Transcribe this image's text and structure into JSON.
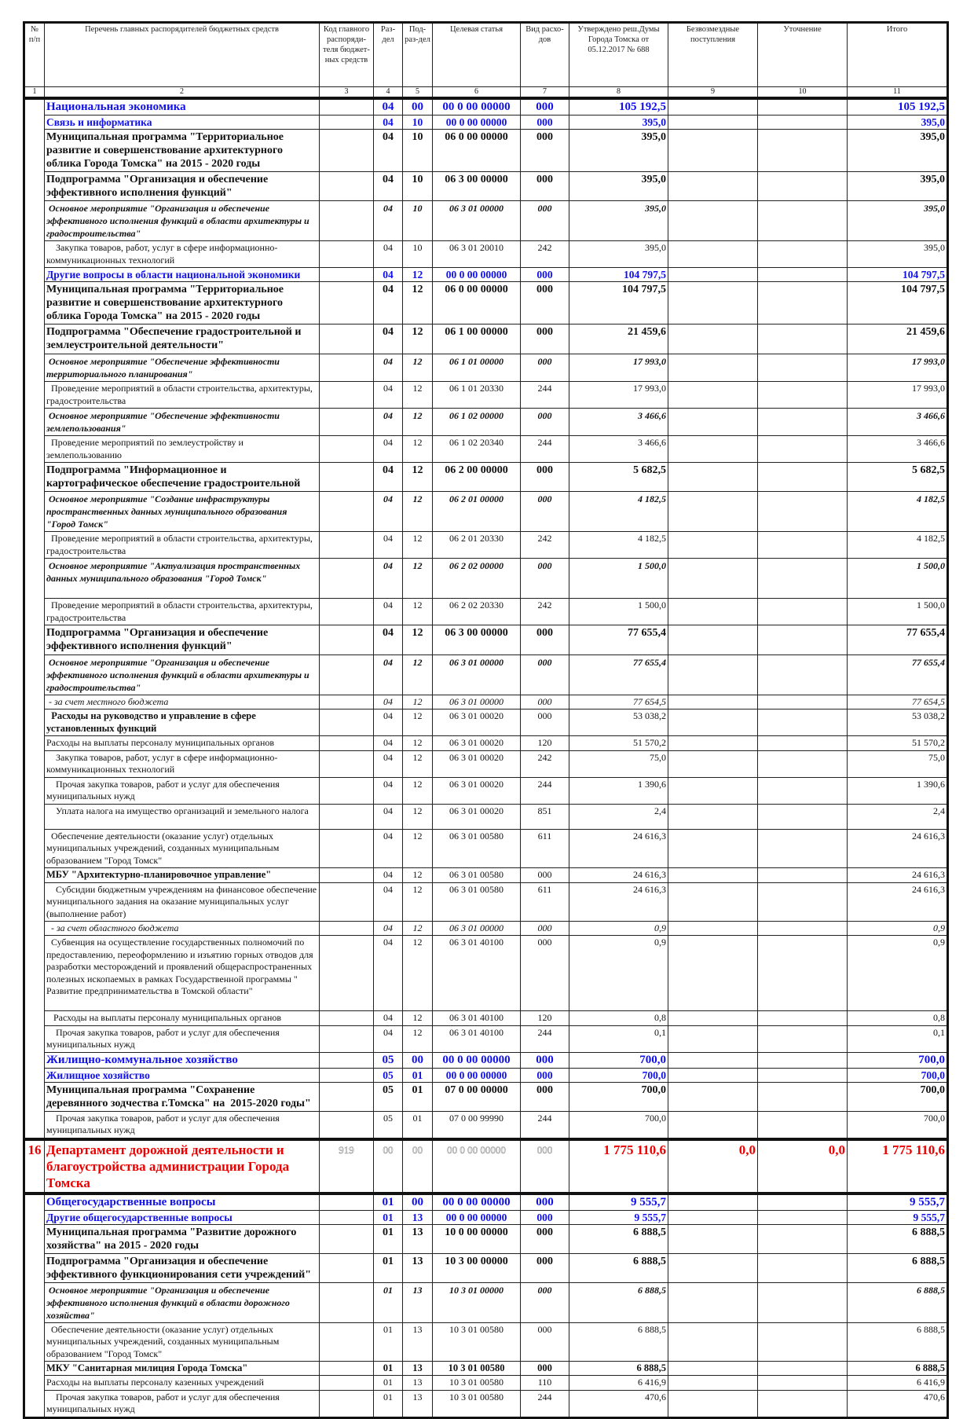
{
  "header": {
    "columns": [
      "№ п/п",
      "Перечень главных распорядителей бюджетных средств",
      "Код главного распоряди-теля бюджет-ных средств",
      "Раз-дел",
      "Под-раз-дел",
      "Целевая статья",
      "Вид расхо-дов",
      "Утверждено реш.Думы Города Томска от 05.12.2017 № 688",
      "Безвозмездные поступления",
      "Уточнение",
      "Итого"
    ],
    "numbers": [
      "1",
      "2",
      "3",
      "4",
      "5",
      "6",
      "7",
      "8",
      "9",
      "10",
      "11"
    ]
  },
  "colors": {
    "section_blue": "#1010ee",
    "department_red": "#ee0000"
  },
  "rows": [
    {
      "s": "sec",
      "t": "Национальная экономика",
      "c4": "04",
      "c5": "00",
      "c6": "00 0 00 00000",
      "c7": "000",
      "c8": "105 192,5",
      "c11": "105 192,5"
    },
    {
      "s": "sub",
      "t": "Связь и информатика",
      "c4": "04",
      "c5": "10",
      "c6": "00 0 00 00000",
      "c7": "000",
      "c8": "395,0",
      "c11": "395,0"
    },
    {
      "s": "bold",
      "t": "Муниципальная программа \"Территориальное развитие и совершенствование архитектурного облика Города Томска\" на 2015 - 2020 годы",
      "c4": "04",
      "c5": "10",
      "c6": "06 0 00 00000",
      "c7": "000",
      "c8": "395,0",
      "c11": "395,0"
    },
    {
      "s": "bold",
      "t": "Подпрограмма \"Организация и обеспечение эффективного исполнения функций\"",
      "c4": "04",
      "c5": "10",
      "c6": "06 3 00 00000",
      "c7": "000",
      "c8": "395,0",
      "c11": "395,0"
    },
    {
      "s": "ital",
      "t": " Основное мероприятие \"Организация и обеспечение эффективного исполнения функций в области архитектуры и градостроительства\"",
      "c4": "04",
      "c5": "10",
      "c6": "06 3 01 00000",
      "c7": "000",
      "c8": "395,0",
      "c11": "395,0"
    },
    {
      "s": "norm",
      "t": "    Закупка товаров, работ, услуг в сфере информационно-коммуникационных технологий",
      "c4": "04",
      "c5": "10",
      "c6": "06 3 01 20010",
      "c7": "242",
      "c8": "395,0",
      "c11": "395,0"
    },
    {
      "s": "sub",
      "t": "Другие вопросы в области национальной экономики",
      "c4": "04",
      "c5": "12",
      "c6": "00 0 00 00000",
      "c7": "000",
      "c8": "104 797,5",
      "c11": "104 797,5"
    },
    {
      "s": "bold",
      "t": "Муниципальная программа \"Территориальное развитие и совершенствование архитектурного облика Города Томска\" на 2015 - 2020 годы",
      "c4": "04",
      "c5": "12",
      "c6": "06 0 00 00000",
      "c7": "000",
      "c8": "104 797,5",
      "c11": "104 797,5"
    },
    {
      "s": "bold",
      "t": "Подпрограмма \"Обеспечение градостроительной и землеустроительной деятельности\"",
      "c4": "04",
      "c5": "12",
      "c6": "06 1 00 00000",
      "c7": "000",
      "c8": "21 459,6",
      "c11": "21 459,6"
    },
    {
      "s": "ital",
      "t": " Основное мероприятие \"Обеспечение эффективности территориального планирования\"",
      "c4": "04",
      "c5": "12",
      "c6": "06 1 01 00000",
      "c7": "000",
      "c8": "17 993,0",
      "c11": "17 993,0"
    },
    {
      "s": "norm",
      "t": "  Проведение мероприятий в области строительства, архитектуры, градостроительства",
      "c4": "04",
      "c5": "12",
      "c6": "06 1 01 20330",
      "c7": "244",
      "c8": "17 993,0",
      "c11": "17 993,0"
    },
    {
      "s": "ital",
      "t": " Основное мероприятие \"Обеспечение эффективности землепользования\"",
      "c4": "04",
      "c5": "12",
      "c6": "06 1 02 00000",
      "c7": "000",
      "c8": "3 466,6",
      "c11": "3 466,6"
    },
    {
      "s": "norm",
      "t": "  Проведение мероприятий по землеустройству и землепользованию",
      "c4": "04",
      "c5": "12",
      "c6": "06 1 02 20340",
      "c7": "244",
      "c8": "3 466,6",
      "c11": "3 466,6"
    },
    {
      "s": "bold",
      "t": "Подпрограмма \"Информационное и картографическое обеспечение градостроительной",
      "c4": "04",
      "c5": "12",
      "c6": "06 2 00 00000",
      "c7": "000",
      "c8": "5 682,5",
      "c11": "5 682,5"
    },
    {
      "s": "ital",
      "t": " Основное мероприятие \"Создание инфраструктуры пространственных данных муниципального образования \"Город Томск\"",
      "c4": "04",
      "c5": "12",
      "c6": "06 2 01 00000",
      "c7": "000",
      "c8": "4 182,5",
      "c11": "4 182,5"
    },
    {
      "s": "norm",
      "t": "  Проведение мероприятий в области строительства, архитектуры, градостроительства",
      "c4": "04",
      "c5": "12",
      "c6": "06 2 01 20330",
      "c7": "242",
      "c8": "4 182,5",
      "c11": "4 182,5"
    },
    {
      "s": "ital",
      "t": " Основное мероприятие \"Актуализация пространственных данных муниципального образования \"Город Томск\"",
      "c4": "04",
      "c5": "12",
      "c6": "06 2 02 00000",
      "c7": "000",
      "c8": "1 500,0",
      "c11": "1 500,0"
    },
    {
      "s": "norm",
      "t": "  Проведение мероприятий в области строительства, архитектуры, градостроительства",
      "c4": "04",
      "c5": "12",
      "c6": "06 2 02 20330",
      "c7": "242",
      "c8": "1 500,0",
      "c11": "1 500,0"
    },
    {
      "s": "bold",
      "t": "Подпрограмма \"Организация и обеспечение эффективного исполнения функций\"",
      "c4": "04",
      "c5": "12",
      "c6": "06 3 00 00000",
      "c7": "000",
      "c8": "77 655,4",
      "c11": "77 655,4"
    },
    {
      "s": "ital",
      "t": " Основное мероприятие \"Организация и обеспечение эффективного исполнения функций в области архитектуры и градостроительства\"",
      "c4": "04",
      "c5": "12",
      "c6": "06 3 01 00000",
      "c7": "000",
      "c8": "77 655,4",
      "c11": "77 655,4"
    },
    {
      "s": "lit",
      "t": " - за счет местного бюджета",
      "c4": "04",
      "c5": "12",
      "c6": "06 3 01 00000",
      "c7": "000",
      "c8": "77 654,5",
      "c11": "77 654,5"
    },
    {
      "s": "boldn",
      "t": "  Расходы на руководство и управление в сфере установленных функций",
      "c4": "04",
      "c5": "12",
      "c6": "06 3 01 00020",
      "c7": "000",
      "c8": "53 038,2",
      "c11": "53 038,2"
    },
    {
      "s": "norm",
      "t": "Расходы на выплаты персоналу муниципальных органов",
      "c4": "04",
      "c5": "12",
      "c6": "06 3 01 00020",
      "c7": "120",
      "c8": "51 570,2",
      "c11": "51 570,2"
    },
    {
      "s": "norm",
      "t": "    Закупка товаров, работ, услуг в сфере информационно-коммуникационных технологий",
      "c4": "04",
      "c5": "12",
      "c6": "06 3 01 00020",
      "c7": "242",
      "c8": "75,0",
      "c11": "75,0"
    },
    {
      "s": "norm",
      "t": "    Прочая закупка товаров, работ и услуг для обеспечения муниципальных нужд",
      "c4": "04",
      "c5": "12",
      "c6": "06 3 01 00020",
      "c7": "244",
      "c8": "1 390,6",
      "c11": "1 390,6"
    },
    {
      "s": "norm",
      "t": "    Уплата налога на имущество организаций и земельного налога",
      "c4": "04",
      "c5": "12",
      "c6": "06 3 01 00020",
      "c7": "851",
      "c8": "2,4",
      "c11": "2,4"
    },
    {
      "s": "norm",
      "t": "  Обеспечение деятельности (оказание услуг) отдельных муниципальных учреждений, созданных муниципальным образованием \"Город Томск\"",
      "c4": "04",
      "c5": "12",
      "c6": "06 3 01 00580",
      "c7": "611",
      "c8": "24 616,3",
      "c11": "24 616,3"
    },
    {
      "s": "boldn",
      "t": "МБУ \"Архитектурно-планировочное управление\"",
      "c4": "04",
      "c5": "12",
      "c6": "06 3 01 00580",
      "c7": "000",
      "c8": "24 616,3",
      "c11": "24 616,3"
    },
    {
      "s": "norm",
      "t": "    Субсидии бюджетным учреждениям на финансовое обеспечение муниципального задания на оказание муниципальных услуг (выполнение работ)",
      "c4": "04",
      "c5": "12",
      "c6": "06 3 01 00580",
      "c7": "611",
      "c8": "24 616,3",
      "c11": "24 616,3"
    },
    {
      "s": "lit",
      "t": "  - за счет областного бюджета",
      "c4": "04",
      "c5": "12",
      "c6": "06 3 01 00000",
      "c7": "000",
      "c8": "0,9",
      "c11": "0,9"
    },
    {
      "s": "norm",
      "t": "  Субвенция на осуществление государственных полномочий по предоставлению, переоформлению и изъятию горных отводов для разработки месторождений и проявлений общераспространенных полезных ископаемых в рамках Государственной программы \" Развитие предпринимательства в Томской области\"",
      "c4": "04",
      "c5": "12",
      "c6": "06 3 01 40100",
      "c7": "000",
      "c8": "0,9",
      "c11": "0,9"
    },
    {
      "s": "norm",
      "t": "   Расходы на выплаты персоналу муниципальных органов",
      "c4": "04",
      "c5": "12",
      "c6": "06 3 01 40100",
      "c7": "120",
      "c8": "0,8",
      "c11": "0,8"
    },
    {
      "s": "norm",
      "t": "    Прочая закупка товаров, работ и услуг для обеспечения муниципальных нужд",
      "c4": "04",
      "c5": "12",
      "c6": "06 3 01 40100",
      "c7": "244",
      "c8": "0,1",
      "c11": "0,1"
    },
    {
      "s": "sec",
      "t": "Жилищно-коммунальное хозяйство",
      "c4": "05",
      "c5": "00",
      "c6": "00 0 00 00000",
      "c7": "000",
      "c8": "700,0",
      "c11": "700,0"
    },
    {
      "s": "sub",
      "t": "Жилищное хозяйство",
      "c4": "05",
      "c5": "01",
      "c6": "00 0 00 00000",
      "c7": "000",
      "c8": "700,0",
      "c11": "700,0"
    },
    {
      "s": "bold",
      "t": "Муниципальная программа \"Сохранение деревянного зодчества г.Томска\" на  2015-2020 годы\"",
      "c4": "05",
      "c5": "01",
      "c6": "07 0 00 00000",
      "c7": "000",
      "c8": "700,0",
      "c11": "700,0"
    },
    {
      "s": "norm",
      "t": "    Прочая закупка товаров, работ и услуг для обеспечения муниципальных нужд",
      "c4": "05",
      "c5": "01",
      "c6": "07 0 00 99990",
      "c7": "244",
      "c8": "700,0",
      "c11": "700,0"
    },
    {
      "s": "red",
      "c1": "16",
      "t": "Департамент дорожной деятельности и благоустройства администрации Города Томска",
      "c3": "919",
      "c4": "00",
      "c5": "00",
      "c6": "00 0 00 00000",
      "c7": "000",
      "c8": "1 775 110,6",
      "c9": "0,0",
      "c10": "0,0",
      "c11": "1 775 110,6"
    },
    {
      "s": "sec",
      "t": "Общегосударственные вопросы",
      "c4": "01",
      "c5": "00",
      "c6": "00 0 00 00000",
      "c7": "000",
      "c8": "9 555,7",
      "c11": "9 555,7"
    },
    {
      "s": "sub",
      "t": "Другие общегосударственные вопросы",
      "c4": "01",
      "c5": "13",
      "c6": "00 0 00 00000",
      "c7": "000",
      "c8": "9 555,7",
      "c11": "9 555,7"
    },
    {
      "s": "bold",
      "t": "Муниципальная программа \"Развитие дорожного хозяйства\" на 2015 - 2020 годы",
      "c4": "01",
      "c5": "13",
      "c6": "10 0 00 00000",
      "c7": "000",
      "c8": "6 888,5",
      "c11": "6 888,5"
    },
    {
      "s": "bold",
      "t": "Подпрограмма \"Организация и обеспечение эффективного функционирования сети учреждений\"",
      "c4": "01",
      "c5": "13",
      "c6": "10 3 00 00000",
      "c7": "000",
      "c8": "6 888,5",
      "c11": "6 888,5"
    },
    {
      "s": "ital",
      "t": " Основное мероприятие \"Организация и обеспечение эффективного исполнения функций в области дорожного хозяйства\"",
      "c4": "01",
      "c5": "13",
      "c6": "10 3 01 00000",
      "c7": "000",
      "c8": "6 888,5",
      "c11": "6 888,5"
    },
    {
      "s": "norm",
      "t": "  Обеспечение деятельности (оказание услуг) отдельных муниципальных учреждений, созданных муниципальным образованием \"Город Томск\"",
      "c4": "01",
      "c5": "13",
      "c6": "10 3 01 00580",
      "c7": "000",
      "c8": "6 888,5",
      "c11": "6 888,5"
    },
    {
      "s": "boldsm",
      "t": "МКУ \"Санитарная милиция Города Томска\"",
      "c4": "01",
      "c5": "13",
      "c6": "10 3 01 00580",
      "c7": "000",
      "c8": "6 888,5",
      "c11": "6 888,5"
    },
    {
      "s": "norm",
      "t": "Расходы на выплаты персоналу казенных учреждений",
      "c4": "01",
      "c5": "13",
      "c6": "10 3 01 00580",
      "c7": "110",
      "c8": "6 416,9",
      "c11": "6 416,9"
    },
    {
      "s": "norm",
      "t": "    Прочая закупка товаров, работ и услуг для обеспечения муниципальных нужд",
      "c4": "01",
      "c5": "13",
      "c6": "10 3 01 00580",
      "c7": "244",
      "c8": "470,6",
      "c11": "470,6"
    }
  ]
}
